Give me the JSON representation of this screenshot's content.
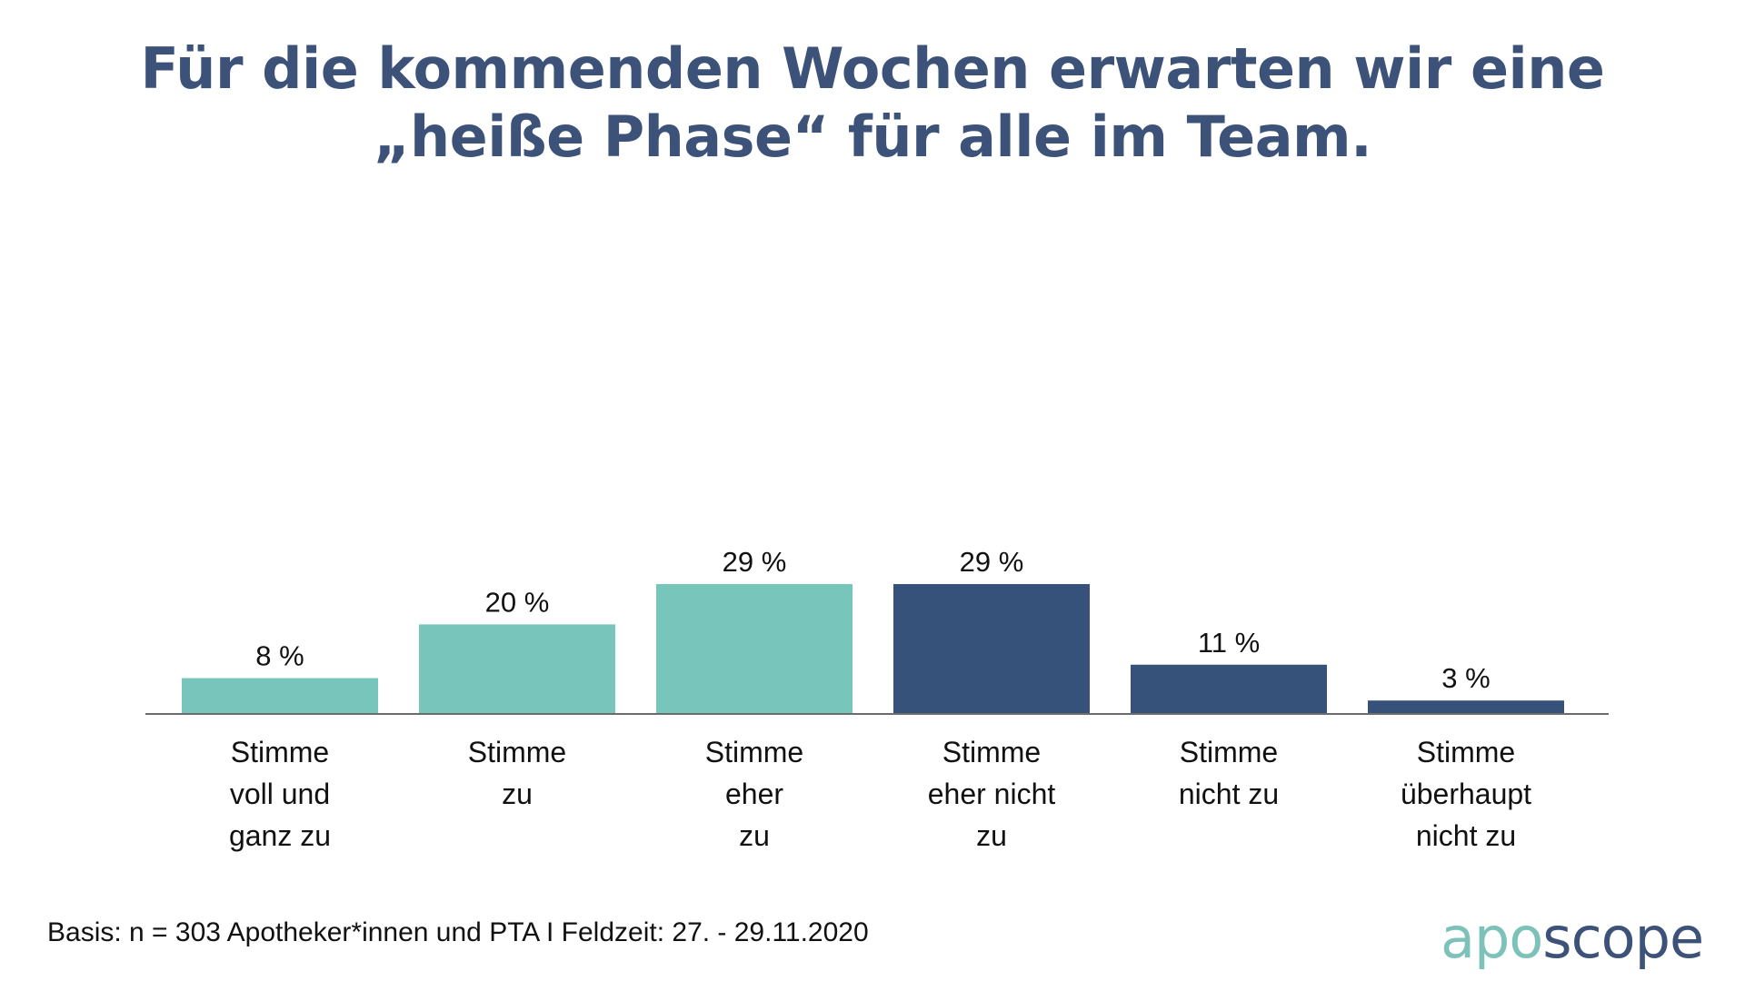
{
  "title": {
    "line1": "Für die kommenden Wochen erwarten wir eine",
    "line2": "„heiße Phase“ für alle im Team."
  },
  "colors": {
    "agree": "#78c5bb",
    "disagree": "#37527a",
    "title": "#3d5278",
    "axis": "#6b6b6b"
  },
  "chart_data": {
    "type": "bar",
    "title": "Für die kommenden Wochen erwarten wir eine „heiße Phase“ für alle im Team.",
    "xlabel": "",
    "ylabel": "",
    "ylim": [
      0,
      29
    ],
    "grid": false,
    "legend": "none",
    "unit": "%",
    "categories": [
      [
        "Stimme",
        "voll und",
        "ganz zu"
      ],
      [
        "Stimme",
        "zu"
      ],
      [
        "Stimme",
        "eher",
        "zu"
      ],
      [
        "Stimme",
        "eher nicht",
        "zu"
      ],
      [
        "Stimme",
        "nicht zu"
      ],
      [
        "Stimme",
        "überhaupt",
        "nicht zu"
      ]
    ],
    "values": [
      8,
      20,
      29,
      29,
      11,
      3
    ],
    "value_labels": [
      "8 %",
      "20 %",
      "29 %",
      "29 %",
      "11 %",
      "3 %"
    ],
    "bar_groups": [
      "agree",
      "agree",
      "agree",
      "disagree",
      "disagree",
      "disagree"
    ]
  },
  "footer": {
    "basis": "Basis: n = 303 Apotheker*innen und PTA I Feldzeit: 27. - 29.11.2020"
  },
  "logo": {
    "part1": "apo",
    "part2": "scope"
  }
}
